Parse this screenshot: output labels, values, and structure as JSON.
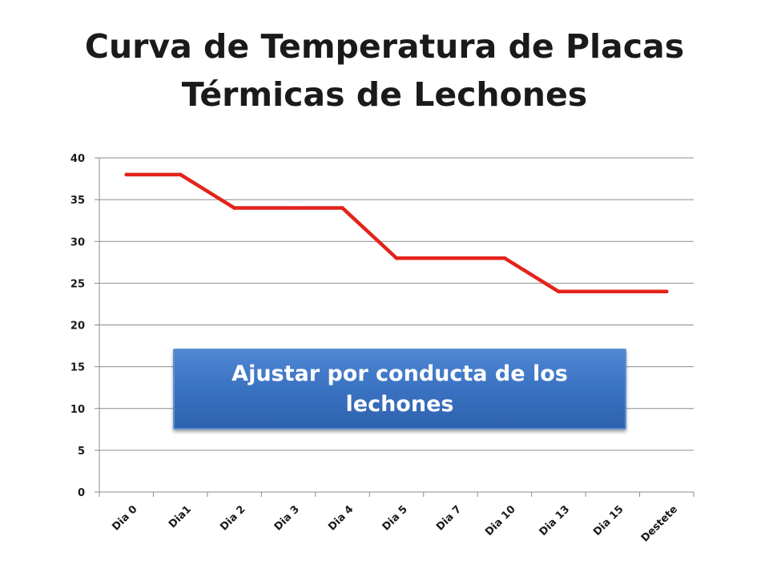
{
  "slide": {
    "title_line1": "Curva de Temperatura de Placas",
    "title_line2": "Térmicas de Lechones"
  },
  "callout": {
    "text": "Ajustar por conducta de los lechones"
  },
  "chart_data": {
    "type": "line",
    "title": "",
    "xlabel": "",
    "ylabel": "",
    "categories": [
      "Dia 0",
      "Dia1",
      "Dia 2",
      "Dia 3",
      "Dia 4",
      "Dia 5",
      "Dia 7",
      "Dia 10",
      "Dia 13",
      "Dia 15",
      "Destete"
    ],
    "series": [
      {
        "values": [
          38,
          38,
          34,
          34,
          34,
          28,
          28,
          28,
          24,
          24,
          24
        ],
        "color": "#e3231b"
      }
    ],
    "ylim": [
      0,
      40
    ],
    "yticks": [
      0,
      5,
      10,
      15,
      20,
      25,
      30,
      35,
      40
    ],
    "grid": true,
    "legend": "none"
  }
}
